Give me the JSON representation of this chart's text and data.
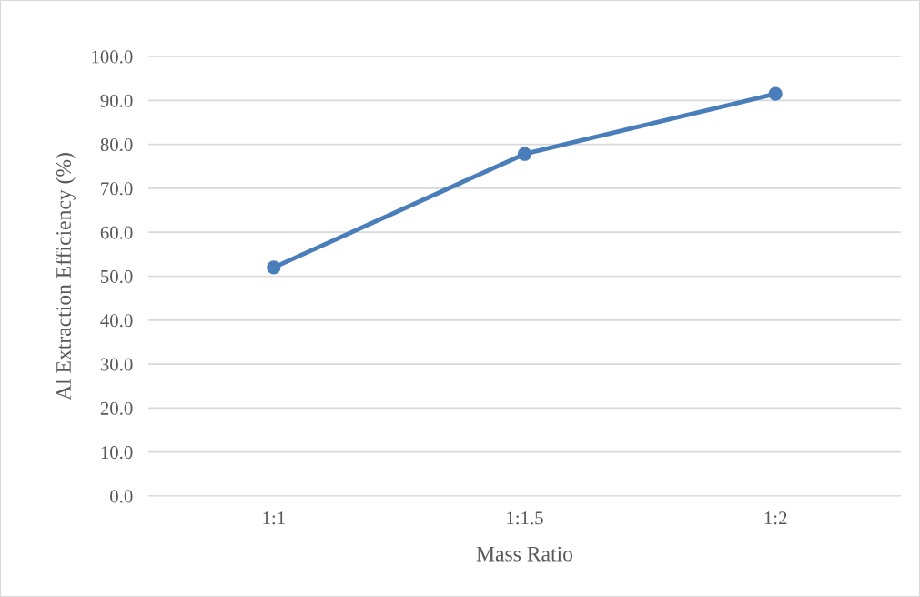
{
  "chart_data": {
    "type": "line",
    "xlabel": "Mass Ratio",
    "ylabel": "Al Extraction Efficiency (%)",
    "categories": [
      "1:1",
      "1:1.5",
      "1:2"
    ],
    "series": [
      {
        "color": "#4a7ebb",
        "values": [
          52.0,
          77.8,
          91.5
        ]
      }
    ],
    "ylim": [
      0,
      100
    ],
    "yticks": [
      {
        "value": 0,
        "label": "0.0"
      },
      {
        "value": 10,
        "label": "10.0"
      },
      {
        "value": 20,
        "label": "20.0"
      },
      {
        "value": 30,
        "label": "30.0"
      },
      {
        "value": 40,
        "label": "40.0"
      },
      {
        "value": 50,
        "label": "50.0"
      },
      {
        "value": 60,
        "label": "60.0"
      },
      {
        "value": 70,
        "label": "70.0"
      },
      {
        "value": 80,
        "label": "80.0"
      },
      {
        "value": 90,
        "label": "90.0"
      },
      {
        "value": 100,
        "label": "100.0"
      }
    ],
    "grid": "y",
    "marker": "circle",
    "line_style": "solid"
  }
}
